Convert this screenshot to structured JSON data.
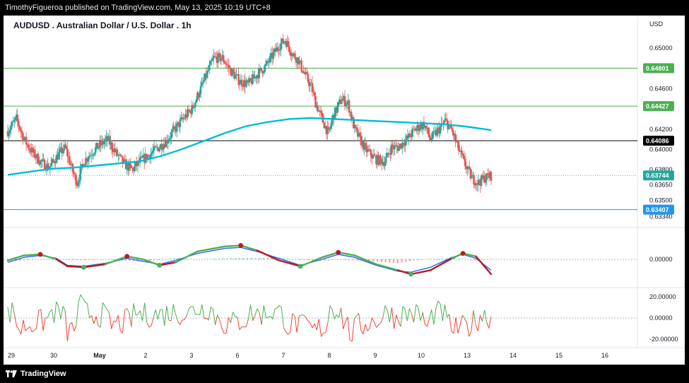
{
  "header": {
    "publisher_line": "TimothyFigueroa published on TradingView.com, May 13, 2025 10:19 UTC+8"
  },
  "footer": {
    "brand": "TradingView",
    "logo_icon": "tradingview-logo-icon"
  },
  "colors": {
    "up": "#26a69a",
    "down": "#ef5350",
    "ma": "#00bcd4",
    "hline_green": "#4caf50",
    "hline_black": "#000000",
    "hline_blue": "#2196f3",
    "osc_fast": "#2962ff",
    "osc_slow_up": "#4caf50",
    "osc_slow_down": "#b71c1c",
    "rsi_up": "#4caf50",
    "rsi_down": "#f44336"
  },
  "chart_data": [
    {
      "type": "candlestick",
      "title": "AUDUSD . Australian Dollar / U.S. Dollar . 1h",
      "currency_label": "USD",
      "ylim": [
        0.633,
        0.6525
      ],
      "y_ticks": [
        "0.65000",
        "0.64600",
        "0.64200",
        "0.64000",
        "0.63800",
        "0.63650",
        "0.63500",
        "0.63340"
      ],
      "x_ticks": [
        "29",
        "30",
        "May",
        "2",
        "3",
        "6",
        "7",
        "8",
        "9",
        "10",
        "13",
        "14",
        "15",
        "16"
      ],
      "price_lines": [
        {
          "value": 0.64801,
          "label": "0.64801",
          "style": "green"
        },
        {
          "value": 0.64427,
          "label": "0.64427",
          "style": "green"
        },
        {
          "value": 0.64086,
          "label": "0.64086",
          "style": "black"
        },
        {
          "value": 0.63407,
          "label": "0.63407",
          "style": "blue"
        }
      ],
      "last_price": {
        "value": 0.63744,
        "label": "0.63744"
      },
      "path_points": [
        [
          0,
          0.6418
        ],
        [
          8,
          0.643
        ],
        [
          15,
          0.641
        ],
        [
          22,
          0.6398
        ],
        [
          30,
          0.6388
        ],
        [
          38,
          0.6382
        ],
        [
          46,
          0.6394
        ],
        [
          53,
          0.6402
        ],
        [
          60,
          0.6378
        ],
        [
          64,
          0.6367
        ],
        [
          70,
          0.6388
        ],
        [
          80,
          0.64
        ],
        [
          92,
          0.641
        ],
        [
          100,
          0.6396
        ],
        [
          108,
          0.6385
        ],
        [
          115,
          0.638
        ],
        [
          122,
          0.6388
        ],
        [
          132,
          0.6396
        ],
        [
          146,
          0.6408
        ],
        [
          160,
          0.6428
        ],
        [
          170,
          0.644
        ],
        [
          180,
          0.6465
        ],
        [
          190,
          0.649
        ],
        [
          198,
          0.649
        ],
        [
          206,
          0.6477
        ],
        [
          214,
          0.6467
        ],
        [
          222,
          0.6464
        ],
        [
          230,
          0.6474
        ],
        [
          238,
          0.6482
        ],
        [
          244,
          0.6492
        ],
        [
          250,
          0.6502
        ],
        [
          256,
          0.6508
        ],
        [
          262,
          0.6495
        ],
        [
          268,
          0.6488
        ],
        [
          274,
          0.6474
        ],
        [
          280,
          0.6462
        ],
        [
          284,
          0.6446
        ],
        [
          290,
          0.643
        ],
        [
          296,
          0.6415
        ],
        [
          300,
          0.6432
        ],
        [
          308,
          0.645
        ],
        [
          314,
          0.6445
        ],
        [
          320,
          0.642
        ],
        [
          330,
          0.64
        ],
        [
          340,
          0.639
        ],
        [
          348,
          0.6388
        ],
        [
          354,
          0.6402
        ],
        [
          360,
          0.6402
        ],
        [
          370,
          0.6412
        ],
        [
          376,
          0.642
        ],
        [
          384,
          0.6425
        ],
        [
          390,
          0.641
        ],
        [
          398,
          0.642
        ],
        [
          404,
          0.6428
        ],
        [
          410,
          0.6418
        ],
        [
          416,
          0.64
        ],
        [
          422,
          0.6385
        ],
        [
          428,
          0.6372
        ],
        [
          434,
          0.6367
        ],
        [
          440,
          0.6372
        ],
        [
          446,
          0.6374
        ]
      ],
      "moving_average": [
        [
          0,
          0.6375
        ],
        [
          20,
          0.6378
        ],
        [
          40,
          0.6381
        ],
        [
          60,
          0.6382
        ],
        [
          80,
          0.6384
        ],
        [
          100,
          0.6386
        ],
        [
          120,
          0.6388
        ],
        [
          140,
          0.6393
        ],
        [
          160,
          0.64
        ],
        [
          180,
          0.6408
        ],
        [
          200,
          0.6416
        ],
        [
          220,
          0.6423
        ],
        [
          240,
          0.6427
        ],
        [
          260,
          0.643
        ],
        [
          280,
          0.6431
        ],
        [
          300,
          0.643
        ],
        [
          320,
          0.6429
        ],
        [
          340,
          0.6428
        ],
        [
          360,
          0.6427
        ],
        [
          380,
          0.6426
        ],
        [
          400,
          0.6425
        ],
        [
          420,
          0.6423
        ],
        [
          440,
          0.642
        ],
        [
          446,
          0.6419
        ]
      ]
    },
    {
      "type": "oscillator",
      "y_ticks": [
        "0.00000"
      ],
      "ylim": [
        -1,
        1
      ],
      "fast_line": [
        [
          0,
          -0.15
        ],
        [
          15,
          0.1
        ],
        [
          30,
          0.2
        ],
        [
          45,
          0.05
        ],
        [
          55,
          -0.3
        ],
        [
          70,
          -0.35
        ],
        [
          90,
          -0.2
        ],
        [
          110,
          0.05
        ],
        [
          125,
          -0.1
        ],
        [
          140,
          -0.25
        ],
        [
          155,
          -0.05
        ],
        [
          175,
          0.3
        ],
        [
          200,
          0.55
        ],
        [
          215,
          0.6
        ],
        [
          230,
          0.4
        ],
        [
          250,
          0.05
        ],
        [
          270,
          -0.3
        ],
        [
          290,
          0.0
        ],
        [
          305,
          0.25
        ],
        [
          320,
          0.1
        ],
        [
          340,
          -0.3
        ],
        [
          360,
          -0.6
        ],
        [
          372,
          -0.65
        ],
        [
          390,
          -0.4
        ],
        [
          410,
          0.1
        ],
        [
          420,
          0.25
        ],
        [
          432,
          0.05
        ],
        [
          446,
          -0.55
        ]
      ],
      "slow_line": [
        [
          0,
          -0.05
        ],
        [
          15,
          0.2
        ],
        [
          30,
          0.25
        ],
        [
          45,
          0.0
        ],
        [
          55,
          -0.35
        ],
        [
          70,
          -0.4
        ],
        [
          90,
          -0.25
        ],
        [
          110,
          0.15
        ],
        [
          125,
          0.0
        ],
        [
          140,
          -0.3
        ],
        [
          155,
          -0.15
        ],
        [
          175,
          0.4
        ],
        [
          200,
          0.65
        ],
        [
          215,
          0.7
        ],
        [
          230,
          0.45
        ],
        [
          250,
          -0.05
        ],
        [
          270,
          -0.35
        ],
        [
          290,
          0.1
        ],
        [
          305,
          0.35
        ],
        [
          320,
          0.2
        ],
        [
          340,
          -0.25
        ],
        [
          360,
          -0.55
        ],
        [
          372,
          -0.75
        ],
        [
          390,
          -0.55
        ],
        [
          410,
          0.05
        ],
        [
          420,
          0.3
        ],
        [
          432,
          0.15
        ],
        [
          446,
          -0.75
        ]
      ],
      "histogram_samples": 120
    },
    {
      "type": "line",
      "y_ticks": [
        "20.00000",
        "0.00000",
        "-20.00000"
      ],
      "ylim": [
        -25,
        25
      ],
      "zero_level": 0,
      "samples": 220
    }
  ]
}
